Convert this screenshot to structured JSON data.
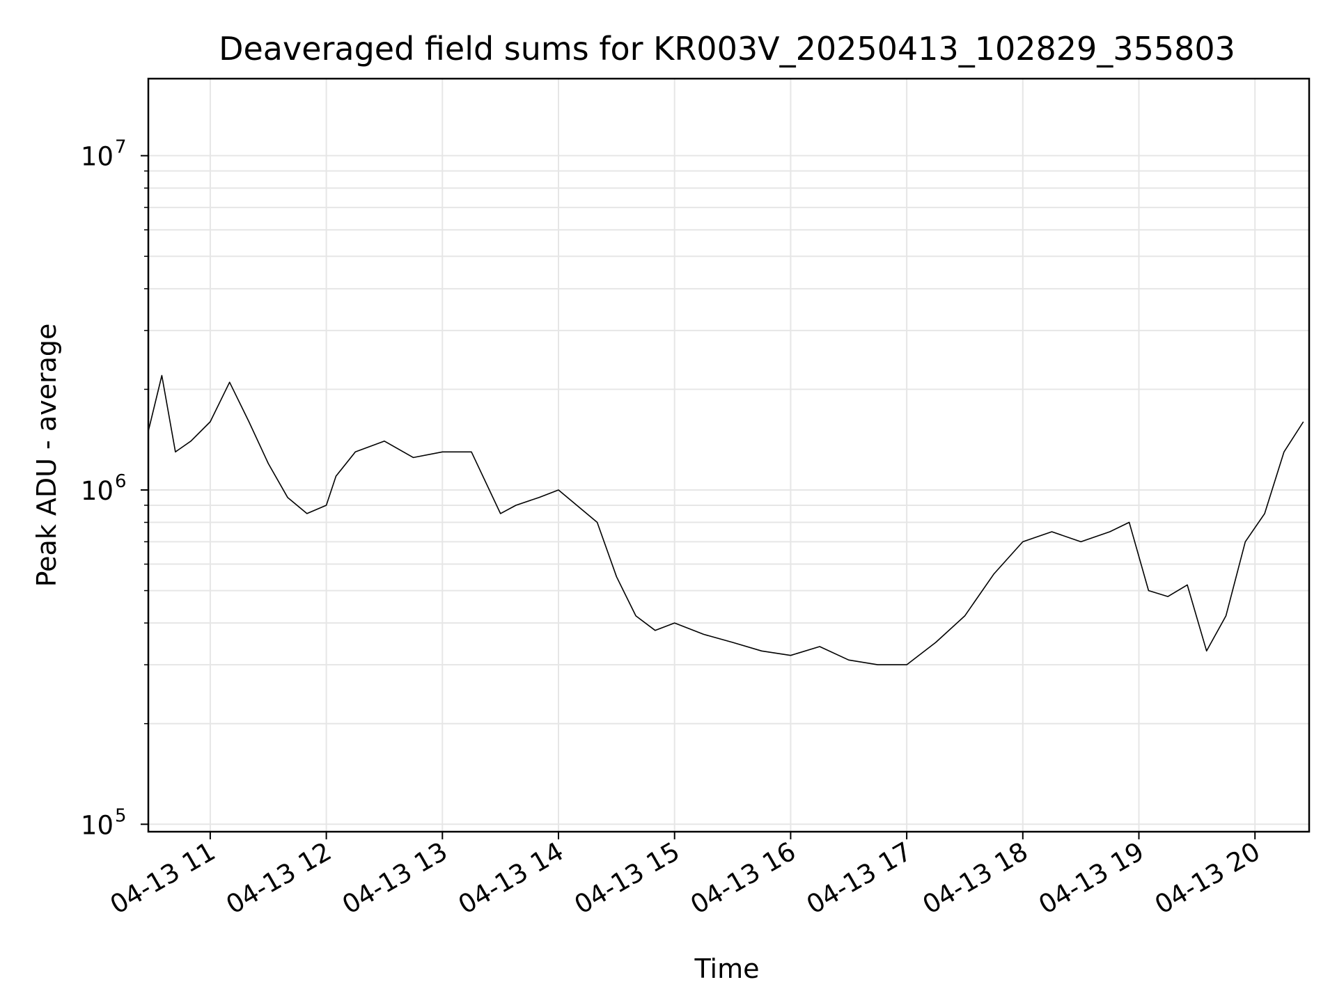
{
  "chart_data": {
    "type": "line",
    "title": "Deaveraged field sums for KR003V_20250413_102829_355803",
    "xlabel": "Time",
    "ylabel": "Peak ADU - average",
    "yscale": "log",
    "ylim": [
      95000,
      17000000
    ],
    "xlim": [
      "2025-04-13 10:28",
      "2025-04-13 20:28"
    ],
    "grid": true,
    "line_color": "#000000",
    "grid_color": "#e6e6e6",
    "x_ticks": [
      {
        "label": "04-13 11",
        "hour": 11
      },
      {
        "label": "04-13 12",
        "hour": 12
      },
      {
        "label": "04-13 13",
        "hour": 13
      },
      {
        "label": "04-13 14",
        "hour": 14
      },
      {
        "label": "04-13 15",
        "hour": 15
      },
      {
        "label": "04-13 16",
        "hour": 16
      },
      {
        "label": "04-13 17",
        "hour": 17
      },
      {
        "label": "04-13 18",
        "hour": 18
      },
      {
        "label": "04-13 19",
        "hour": 19
      },
      {
        "label": "04-13 20",
        "hour": 20
      }
    ],
    "y_ticks": [
      {
        "base": "10",
        "exp": "5",
        "value": 100000
      },
      {
        "base": "10",
        "exp": "6",
        "value": 1000000
      },
      {
        "base": "10",
        "exp": "7",
        "value": 10000000
      }
    ],
    "series": [
      {
        "x": [
          "10:28",
          "10:35",
          "10:42",
          "10:50",
          "11:00",
          "11:10",
          "11:20",
          "11:30",
          "11:40",
          "11:50",
          "12:00",
          "12:05",
          "12:15",
          "12:30",
          "12:45",
          "13:00",
          "13:15",
          "13:30",
          "13:38",
          "13:50",
          "14:00",
          "14:20",
          "14:30",
          "14:40",
          "14:50",
          "15:00",
          "15:15",
          "15:30",
          "15:45",
          "16:00",
          "16:15",
          "16:30",
          "16:45",
          "17:00",
          "17:15",
          "17:30",
          "17:45",
          "18:00",
          "18:15",
          "18:30",
          "18:45",
          "18:55",
          "19:05",
          "19:15",
          "19:25",
          "19:35",
          "19:45",
          "19:55",
          "20:05",
          "20:15",
          "20:25"
        ],
        "y": [
          1500000,
          2200000,
          1300000,
          1400000,
          1600000,
          2100000,
          1600000,
          1200000,
          950000,
          850000,
          900000,
          1100000,
          1300000,
          1400000,
          1250000,
          1300000,
          1300000,
          850000,
          900000,
          950000,
          1000000,
          800000,
          550000,
          420000,
          380000,
          400000,
          370000,
          350000,
          330000,
          320000,
          340000,
          310000,
          300000,
          300000,
          350000,
          420000,
          560000,
          700000,
          750000,
          700000,
          750000,
          800000,
          500000,
          480000,
          520000,
          330000,
          420000,
          700000,
          850000,
          1300000,
          1600000
        ]
      }
    ]
  }
}
